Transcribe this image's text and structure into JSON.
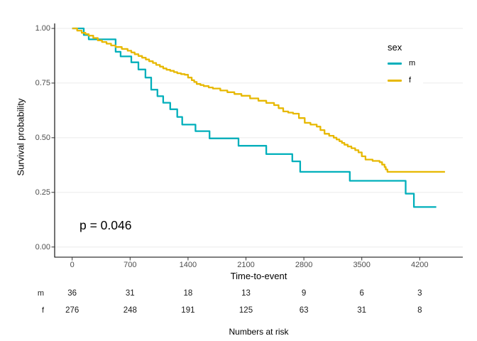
{
  "chart_data": {
    "type": "line",
    "subtype": "kaplan-meier-step-survival",
    "title": "",
    "xlabel": "Time-to-event",
    "ylabel": "Survival probability",
    "xlim": [
      0,
      4720
    ],
    "ylim": [
      0.0,
      1.0
    ],
    "x_ticks": [
      0,
      700,
      1400,
      2100,
      2800,
      3500,
      4200
    ],
    "y_ticks": [
      0.0,
      0.25,
      0.5,
      0.75,
      1.0
    ],
    "y_tick_labels": [
      "0.00",
      "0.25",
      "0.50",
      "0.75",
      "1.00"
    ],
    "grid": "horizontal major gridlines only, light gray on white",
    "grid_color": "#ebebeb",
    "axis_color": "#000000",
    "tick_label_color": "#4d4d4d",
    "annotation": {
      "text": "p = 0.046",
      "x": 120,
      "y": 0.1
    },
    "legend": {
      "title": "sex",
      "position": "right",
      "items": [
        {
          "label": "m",
          "color": "#00AFBB"
        },
        {
          "label": "f",
          "color": "#E7B800"
        }
      ]
    },
    "series": [
      {
        "name": "m",
        "color": "#00AFBB",
        "step": true,
        "points": [
          [
            0,
            1.0
          ],
          [
            140,
            0.97
          ],
          [
            200,
            0.95
          ],
          [
            525,
            0.893
          ],
          [
            585,
            0.872
          ],
          [
            715,
            0.845
          ],
          [
            800,
            0.812
          ],
          [
            885,
            0.775
          ],
          [
            955,
            0.72
          ],
          [
            1030,
            0.69
          ],
          [
            1100,
            0.66
          ],
          [
            1185,
            0.63
          ],
          [
            1270,
            0.595
          ],
          [
            1330,
            0.56
          ],
          [
            1490,
            0.53
          ],
          [
            1660,
            0.497
          ],
          [
            2010,
            0.463
          ],
          [
            2345,
            0.425
          ],
          [
            2660,
            0.392
          ],
          [
            2755,
            0.344
          ],
          [
            3355,
            0.303
          ],
          [
            4030,
            0.244
          ],
          [
            4130,
            0.183
          ],
          [
            4400,
            0.183
          ]
        ]
      },
      {
        "name": "f",
        "color": "#E7B800",
        "step": true,
        "points": [
          [
            0,
            1.0
          ],
          [
            60,
            0.99
          ],
          [
            115,
            0.98
          ],
          [
            160,
            0.974
          ],
          [
            200,
            0.967
          ],
          [
            255,
            0.956
          ],
          [
            310,
            0.945
          ],
          [
            360,
            0.938
          ],
          [
            415,
            0.93
          ],
          [
            470,
            0.922
          ],
          [
            525,
            0.915
          ],
          [
            600,
            0.906
          ],
          [
            670,
            0.898
          ],
          [
            715,
            0.89
          ],
          [
            755,
            0.882
          ],
          [
            800,
            0.874
          ],
          [
            845,
            0.866
          ],
          [
            890,
            0.858
          ],
          [
            930,
            0.85
          ],
          [
            975,
            0.842
          ],
          [
            1015,
            0.833
          ],
          [
            1060,
            0.825
          ],
          [
            1100,
            0.817
          ],
          [
            1140,
            0.811
          ],
          [
            1185,
            0.806
          ],
          [
            1230,
            0.8
          ],
          [
            1270,
            0.795
          ],
          [
            1315,
            0.791
          ],
          [
            1360,
            0.788
          ],
          [
            1400,
            0.775
          ],
          [
            1445,
            0.763
          ],
          [
            1475,
            0.755
          ],
          [
            1505,
            0.746
          ],
          [
            1550,
            0.741
          ],
          [
            1590,
            0.736
          ],
          [
            1650,
            0.73
          ],
          [
            1700,
            0.725
          ],
          [
            1790,
            0.716
          ],
          [
            1875,
            0.708
          ],
          [
            1960,
            0.7
          ],
          [
            2045,
            0.692
          ],
          [
            2150,
            0.68
          ],
          [
            2250,
            0.669
          ],
          [
            2345,
            0.659
          ],
          [
            2440,
            0.649
          ],
          [
            2495,
            0.635
          ],
          [
            2550,
            0.62
          ],
          [
            2610,
            0.615
          ],
          [
            2670,
            0.61
          ],
          [
            2740,
            0.59
          ],
          [
            2810,
            0.568
          ],
          [
            2880,
            0.56
          ],
          [
            2955,
            0.551
          ],
          [
            3000,
            0.535
          ],
          [
            3050,
            0.518
          ],
          [
            3105,
            0.509
          ],
          [
            3160,
            0.5
          ],
          [
            3195,
            0.492
          ],
          [
            3230,
            0.484
          ],
          [
            3260,
            0.476
          ],
          [
            3290,
            0.468
          ],
          [
            3330,
            0.46
          ],
          [
            3375,
            0.452
          ],
          [
            3420,
            0.443
          ],
          [
            3460,
            0.433
          ],
          [
            3500,
            0.415
          ],
          [
            3545,
            0.4
          ],
          [
            3630,
            0.394
          ],
          [
            3715,
            0.388
          ],
          [
            3745,
            0.377
          ],
          [
            3775,
            0.366
          ],
          [
            3790,
            0.355
          ],
          [
            3810,
            0.344
          ],
          [
            4505,
            0.344
          ]
        ]
      }
    ],
    "numbers_at_risk": {
      "caption": "Numbers at risk",
      "times": [
        0,
        700,
        1400,
        2100,
        2800,
        3500,
        4200
      ],
      "rows": [
        {
          "label": "m",
          "counts": [
            36,
            31,
            18,
            13,
            9,
            6,
            3
          ]
        },
        {
          "label": "f",
          "counts": [
            276,
            248,
            191,
            125,
            63,
            31,
            8
          ]
        }
      ]
    }
  }
}
